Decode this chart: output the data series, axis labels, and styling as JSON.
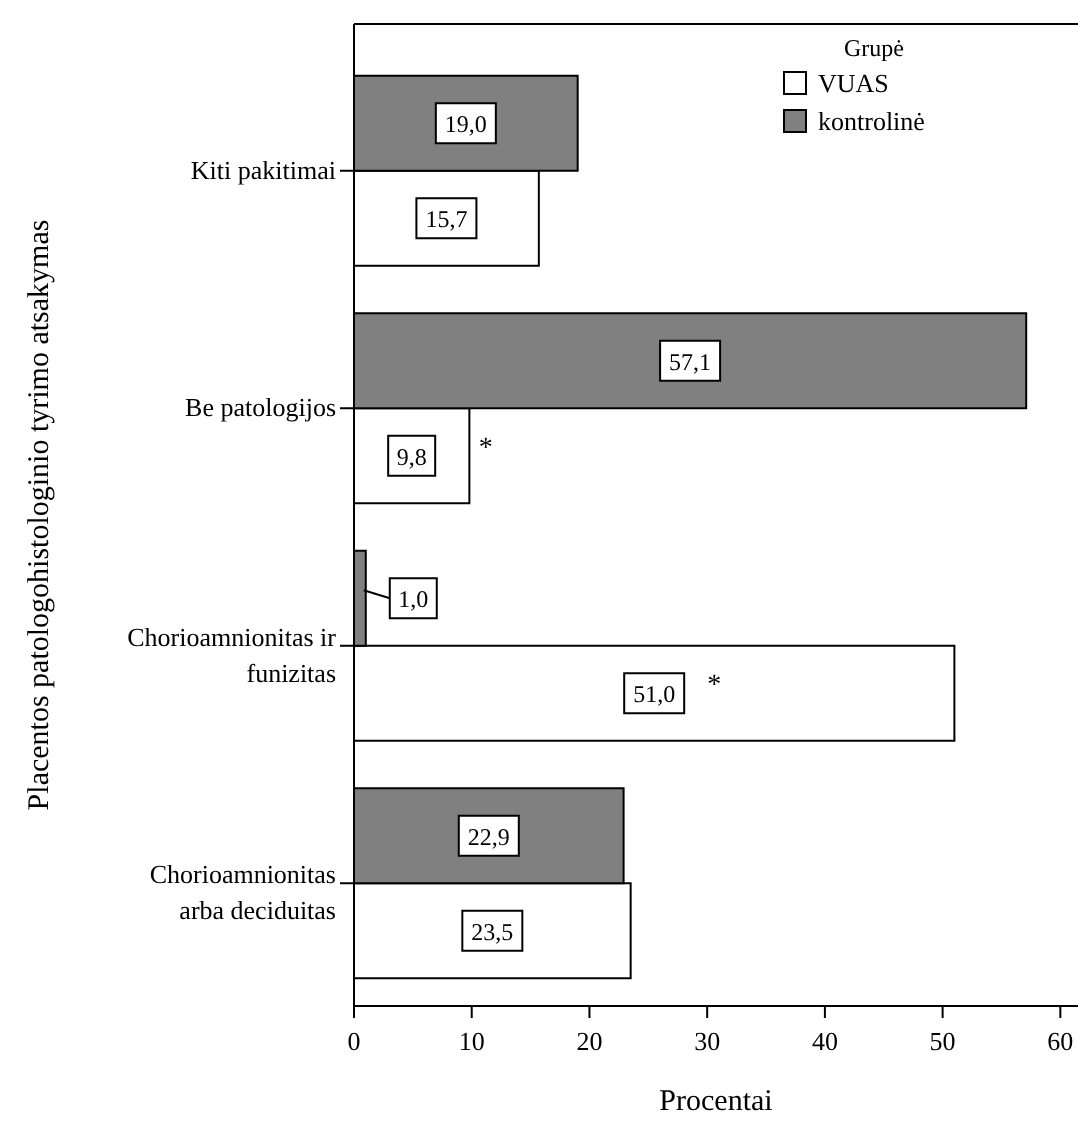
{
  "chart_data": {
    "type": "bar",
    "orientation": "horizontal",
    "xlabel": "Procentai",
    "ylabel": "Placentos patologohistologinio tyrimo atsakymas",
    "legend_title": "Grupė",
    "legend": "top right",
    "categories": [
      "Kiti pakitimai",
      "Be patologijos",
      "Chorioamnionitas ir funizitas",
      "Chorioamnionitas arba deciduitas"
    ],
    "series": [
      {
        "name": "VUAS",
        "color": "#ffffff",
        "values": [
          15.7,
          9.8,
          51.0,
          23.5
        ],
        "value_labels": [
          "15,7",
          "9,8",
          "51,0",
          "23,5"
        ]
      },
      {
        "name": "kontrolinė",
        "color": "#808080",
        "values": [
          19.0,
          57.1,
          1.0,
          22.9
        ],
        "value_labels": [
          "19,0",
          "57,1",
          "1,0",
          "22,9"
        ]
      }
    ],
    "xlim": [
      0,
      61.5
    ],
    "xticks": [
      0,
      10,
      20,
      30,
      40,
      50,
      60
    ],
    "annotations": [
      {
        "text": "*",
        "x": 11.2,
        "y": "Be patologijos"
      },
      {
        "text": "*",
        "x": 30.6,
        "y": "Chorioamnionitas ir funizitas"
      }
    ]
  }
}
